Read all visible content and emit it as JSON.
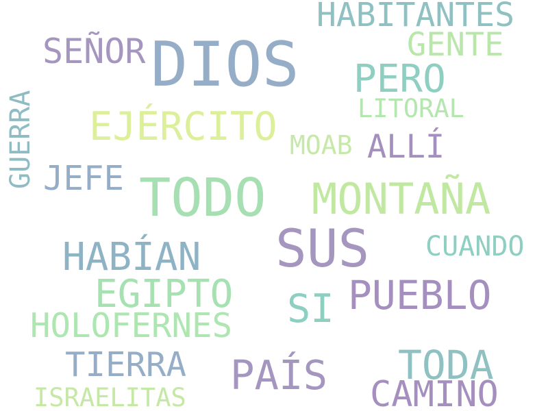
{
  "words": {
    "dios": {
      "text": "DIOS",
      "color": "#96adc8"
    },
    "habitantes": {
      "text": "HABITANTES",
      "color": "#8fc0c2"
    },
    "senor": {
      "text": "SEÑOR",
      "color": "#a596bf"
    },
    "gente": {
      "text": "GENTE",
      "color": "#b9e7a9"
    },
    "pero": {
      "text": "PERO",
      "color": "#8ecfc2"
    },
    "litoral": {
      "text": "LITORAL",
      "color": "#b4e6b0"
    },
    "ejercito": {
      "text": "EJÉRCITO",
      "color": "#dcef9a"
    },
    "moab": {
      "text": "MOAB",
      "color": "#c7e9a8"
    },
    "alli": {
      "text": "ALLÍ",
      "color": "#a48fbe"
    },
    "guerra": {
      "text": "GUERRA",
      "color": "#8fbcc3"
    },
    "jefe": {
      "text": "JEFE",
      "color": "#96adc8"
    },
    "todo": {
      "text": "TODO",
      "color": "#a5dfb2"
    },
    "montana": {
      "text": "MONTAÑA",
      "color": "#c1e8a1"
    },
    "sus": {
      "text": "SUS",
      "color": "#a596bf"
    },
    "cuando": {
      "text": "CUANDO",
      "color": "#8ecfc2"
    },
    "habian": {
      "text": "HABÍAN",
      "color": "#8eb3c5"
    },
    "egipto": {
      "text": "EGIPTO",
      "color": "#a6e1b1"
    },
    "si": {
      "text": "SI",
      "color": "#8ecfc2"
    },
    "pueblo": {
      "text": "PUEBLO",
      "color": "#a48fbe"
    },
    "holofernes": {
      "text": "HOLOFERNES",
      "color": "#ade6b0"
    },
    "tierra": {
      "text": "TIERRA",
      "color": "#96adc8"
    },
    "pais": {
      "text": "PAÍS",
      "color": "#a596bf"
    },
    "toda": {
      "text": "TODA",
      "color": "#8fc0c2"
    },
    "israelitas": {
      "text": "ISRAELITAS",
      "color": "#c5e8a5"
    },
    "camino": {
      "text": "CAMINO",
      "color": "#a48fbe"
    }
  }
}
